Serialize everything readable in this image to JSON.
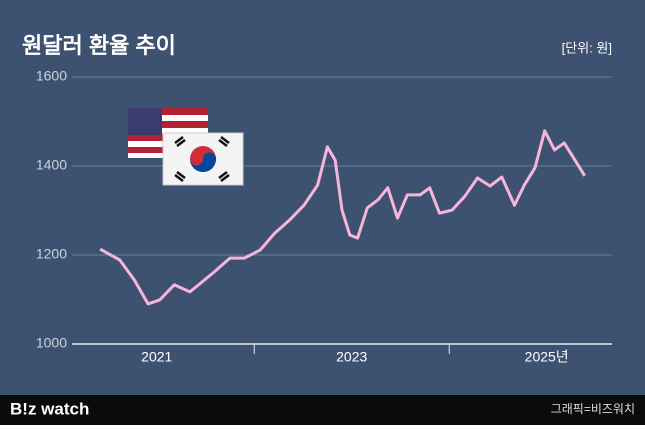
{
  "chart_data": {
    "type": "line",
    "title": "원달러 환율 추이",
    "unit_label": "[단위: 원]",
    "brand": "B!z watch",
    "credit": "그래픽=비즈워치",
    "x": [
      2020.42,
      2020.62,
      2020.77,
      2020.91,
      2021.03,
      2021.18,
      2021.34,
      2021.44,
      2021.59,
      2021.75,
      2021.9,
      2022.06,
      2022.21,
      2022.36,
      2022.51,
      2022.65,
      2022.75,
      2022.83,
      2022.9,
      2022.98,
      2023.06,
      2023.16,
      2023.27,
      2023.37,
      2023.47,
      2023.57,
      2023.7,
      2023.8,
      2023.9,
      2024.03,
      2024.16,
      2024.29,
      2024.42,
      2024.54,
      2024.67,
      2024.77,
      2024.88,
      2024.98,
      2025.08,
      2025.18,
      2025.29,
      2025.39
    ],
    "series": [
      {
        "name": "원달러 환율",
        "color": "#f7b5dc",
        "values": [
          1213,
          1189,
          1144,
          1090,
          1099,
          1133,
          1117,
          1135,
          1162,
          1193,
          1193,
          1211,
          1249,
          1278,
          1312,
          1357,
          1443,
          1413,
          1301,
          1245,
          1238,
          1306,
          1324,
          1351,
          1283,
          1335,
          1335,
          1351,
          1294,
          1301,
          1332,
          1373,
          1355,
          1375,
          1312,
          1357,
          1396,
          1479,
          1436,
          1452,
          1413,
          1378
        ]
      }
    ],
    "xlim": [
      2020.11,
      2025.67
    ],
    "xticks": [
      2021,
      2023,
      {
        "value": 2025,
        "label": "2025년"
      }
    ],
    "minor_xticks": [
      2022,
      2024
    ],
    "ylim": [
      1000,
      1600
    ],
    "yticks": [
      1000,
      1200,
      1400,
      1600
    ],
    "grid": true
  }
}
